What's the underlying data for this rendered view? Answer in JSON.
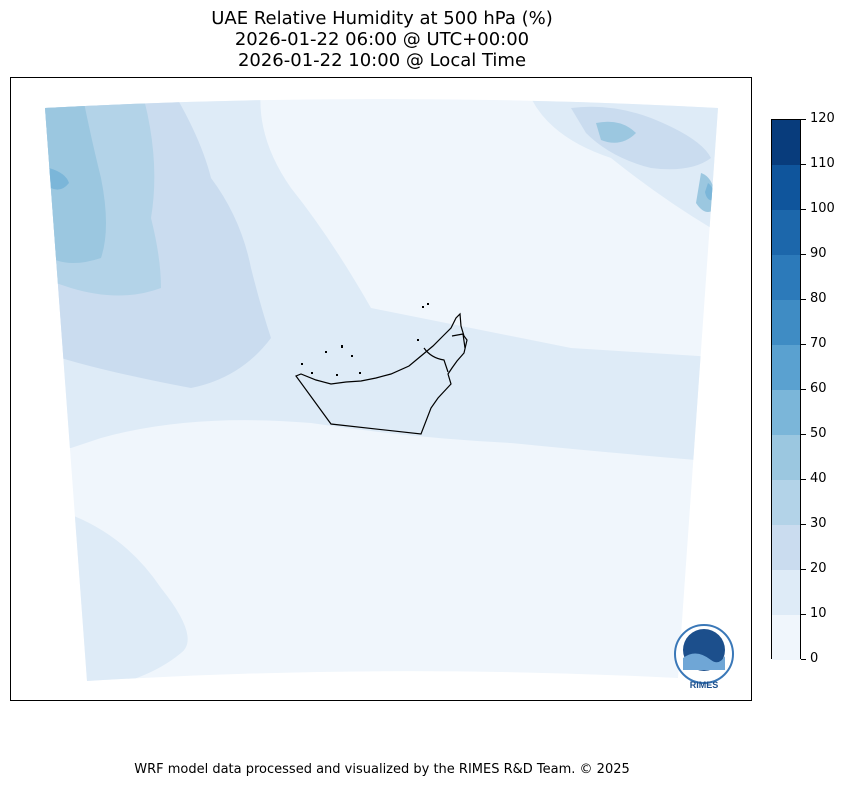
{
  "title": {
    "line1": "UAE Relative Humidity at 500 hPa (%)",
    "line2": "2026-01-22 06:00 @ UTC+00:00",
    "line3": "2026-01-22 10:00 @ Local Time"
  },
  "colorbar": {
    "ticks": [
      0,
      10,
      20,
      30,
      40,
      50,
      60,
      70,
      80,
      90,
      100,
      110,
      120
    ],
    "tick_labels": [
      "0",
      "10",
      "20",
      "30",
      "40",
      "50",
      "60",
      "70",
      "80",
      "90",
      "100",
      "110",
      "120"
    ],
    "colors": [
      "#f0f6fc",
      "#deebf7",
      "#cadcef",
      "#b3d3e8",
      "#9bc7e0",
      "#7bb6d9",
      "#5aa1d0",
      "#3f8cc4",
      "#2c7aba",
      "#1c67ab",
      "#0f559c",
      "#083c7c"
    ],
    "cmap": "Blues"
  },
  "logo": {
    "text": "RIMES"
  },
  "footer": "WRF model data processed and visualized by the RIMES R&D Team. © 2025"
}
